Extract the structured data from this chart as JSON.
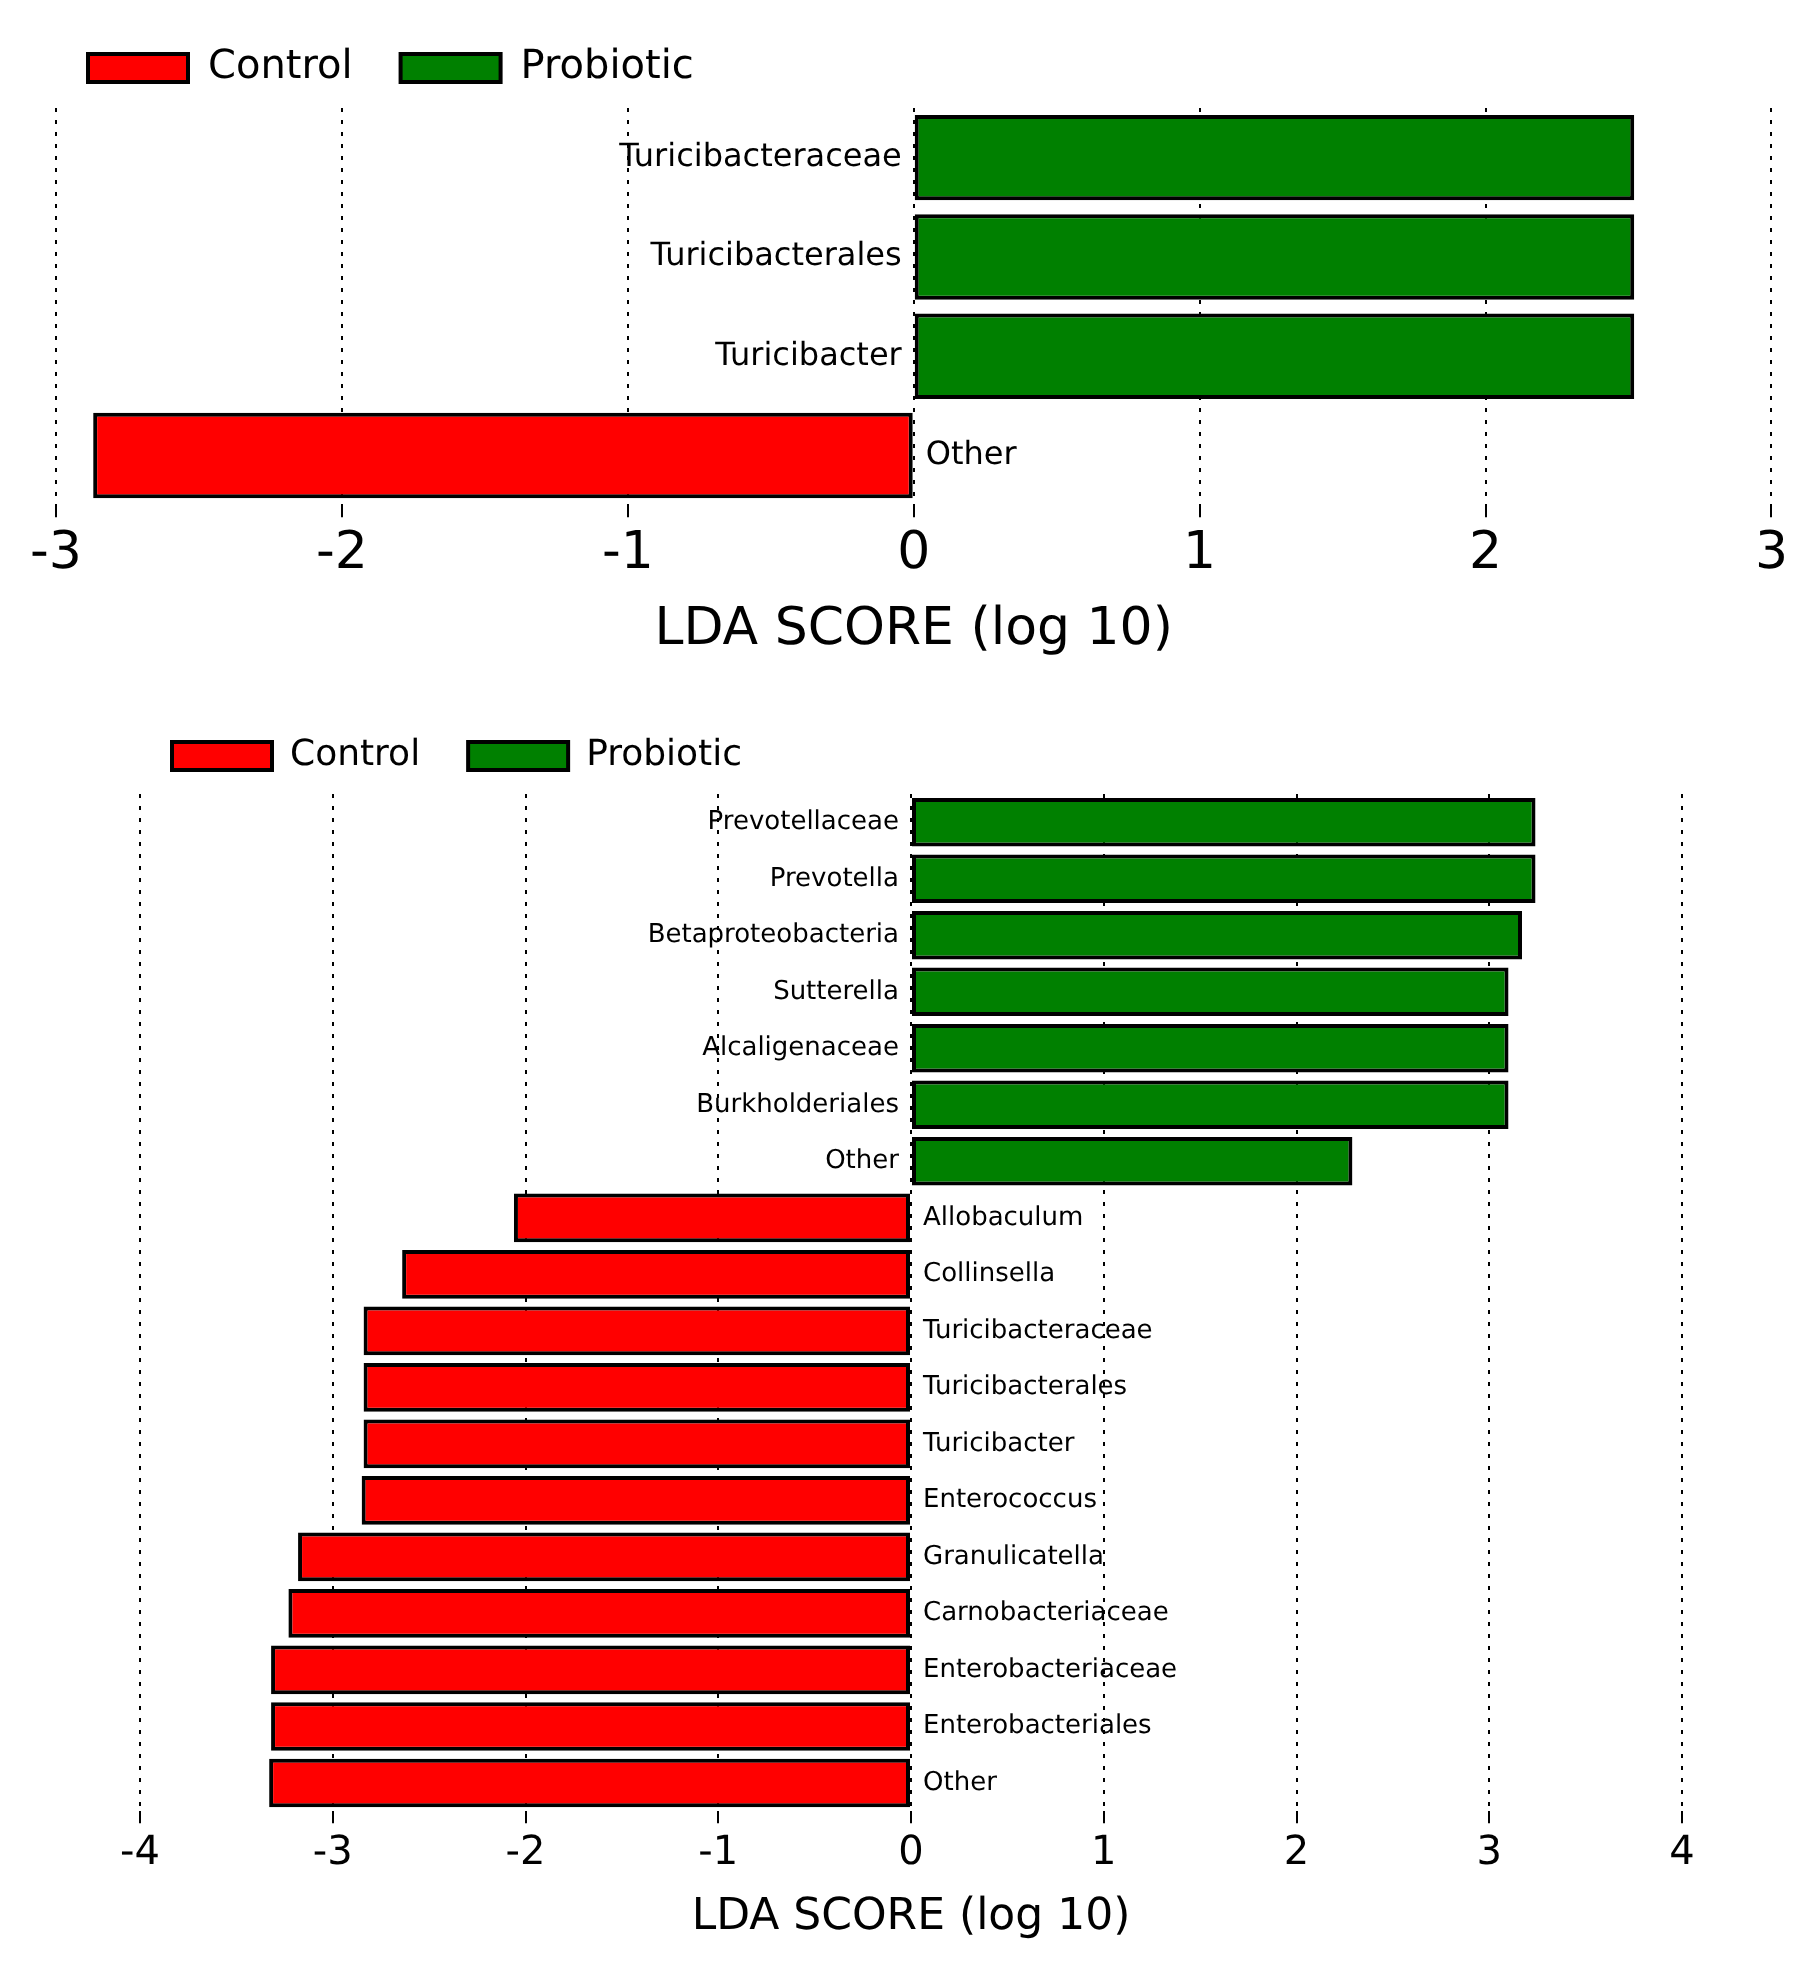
{
  "chart_data": [
    {
      "type": "bar",
      "orientation": "horizontal",
      "categories": [
        "Turicibacteraceae",
        "Turicibacterales",
        "Turicibacter",
        "Other"
      ],
      "series": [
        {
          "name": "Control",
          "color": "#ff0000",
          "values": [
            null,
            null,
            null,
            -2.87
          ]
        },
        {
          "name": "Probiotic",
          "color": "#008000",
          "values": [
            2.52,
            2.52,
            2.52,
            null
          ]
        }
      ],
      "xlabel": "LDA SCORE (log 10)",
      "xlim": [
        -3,
        3
      ],
      "xticks": [
        -3,
        -2,
        -1,
        0,
        1,
        2,
        3
      ],
      "grid": "x",
      "legend": "top left"
    },
    {
      "type": "bar",
      "orientation": "horizontal",
      "categories": [
        "Prevotellaceae",
        "Prevotella",
        "Betaproteobacteria",
        "Sutterella",
        "Alcaligenaceae",
        "Burkholderiales",
        "Other",
        "Allobaculum",
        "Collinsella",
        "Turicibacteraceae",
        "Turicibacterales",
        "Turicibacter",
        "Enterococcus",
        "Granulicatella",
        "Carnobacteriaceae",
        "Enterobacteriaceae",
        "Enterobacteriales",
        "Other"
      ],
      "series": [
        {
          "name": "Control",
          "color": "#ff0000",
          "values": [
            null,
            null,
            null,
            null,
            null,
            null,
            null,
            -2.06,
            -2.64,
            -2.84,
            -2.84,
            -2.84,
            -2.85,
            -3.18,
            -3.23,
            -3.32,
            -3.32,
            -3.33
          ]
        },
        {
          "name": "Probiotic",
          "color": "#008000",
          "values": [
            3.24,
            3.24,
            3.17,
            3.1,
            3.1,
            3.1,
            2.29,
            null,
            null,
            null,
            null,
            null,
            null,
            null,
            null,
            null,
            null,
            null
          ]
        }
      ],
      "xlabel": "LDA SCORE (log 10)",
      "xlim": [
        -4,
        4
      ],
      "xticks": [
        -4,
        -3,
        -2,
        -1,
        0,
        1,
        2,
        3,
        4
      ],
      "grid": "x",
      "legend": "top left"
    }
  ]
}
